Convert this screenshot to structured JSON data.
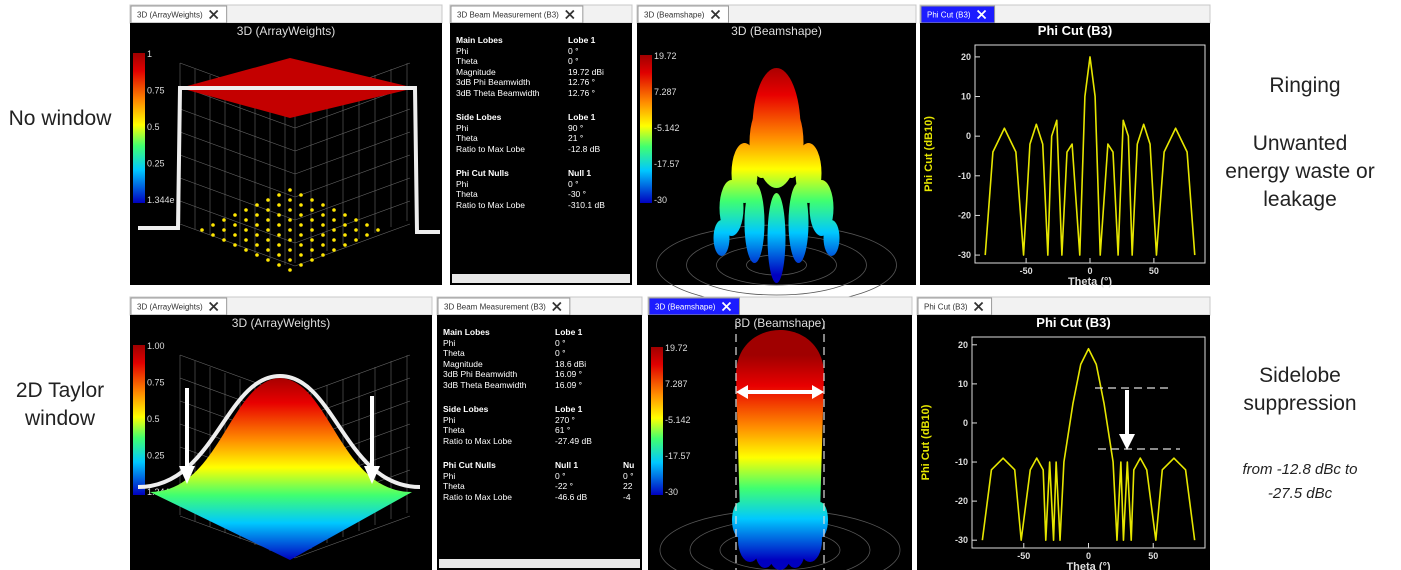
{
  "rows": [
    {
      "label": "No window",
      "notes": [
        "Ringing",
        "Unwanted energy waste or leakage"
      ],
      "weights": {
        "tab": "3D (ArrayWeights)",
        "title": "3D (ArrayWeights)",
        "colorbar": [
          "1",
          "0.75",
          "0.5",
          "0.25",
          "1.344e"
        ]
      },
      "measurement": {
        "tab": "3D Beam Measurement (B3)",
        "sections": [
          [
            [
              "Main Lobes",
              "Lobe 1"
            ],
            [
              "Phi",
              "0 °"
            ],
            [
              "Theta",
              "0 °"
            ],
            [
              "Magnitude",
              "19.72 dBi"
            ],
            [
              "3dB Phi Beamwidth",
              "12.76 °"
            ],
            [
              "3dB Theta Beamwidth",
              "12.76 °"
            ]
          ],
          [
            [
              "Side Lobes",
              "Lobe 1"
            ],
            [
              "Phi",
              "90 °"
            ],
            [
              "Theta",
              "21 °"
            ],
            [
              "Ratio to Max Lobe",
              "-12.8 dB"
            ]
          ],
          [
            [
              "Phi Cut Nulls",
              "Null 1"
            ],
            [
              "Phi",
              "0 °"
            ],
            [
              "Theta",
              "-30 °"
            ],
            [
              "Ratio to Max Lobe",
              "-310.1 dB"
            ]
          ]
        ]
      },
      "beamshape": {
        "tab": "3D (Beamshape)",
        "title": "3D (Beamshape)",
        "colorbar": [
          "19.72",
          "7.287",
          "-5.142",
          "-17.57",
          "-30"
        ]
      },
      "phi_cut": {
        "tab": "Phi Cut (B3)",
        "type": "line",
        "title": "Phi Cut (B3)",
        "ylabel": "Phi Cut (dB10)",
        "xlabel": "Theta (°)",
        "xlim": [
          -90,
          90
        ],
        "ylim": [
          -32,
          23
        ],
        "xticks": [
          -50,
          0,
          50
        ],
        "yticks": [
          20,
          10,
          0,
          -10,
          -20,
          -30
        ],
        "color": "#e6e600",
        "x": [
          -82,
          -76,
          -67,
          -58,
          -52,
          -47,
          -42,
          -37,
          -33,
          -30,
          -26,
          -22,
          -18,
          -14,
          -8,
          -4,
          0,
          4,
          8,
          14,
          18,
          22,
          26,
          30,
          33,
          37,
          42,
          47,
          52,
          58,
          67,
          76,
          82
        ],
        "values": [
          -30,
          -4,
          2,
          -4,
          -30,
          -2,
          3,
          -2,
          -30,
          0,
          4,
          -30,
          -4,
          -2,
          -30,
          10,
          20,
          10,
          -30,
          -2,
          -4,
          -30,
          4,
          0,
          -30,
          -2,
          3,
          -2,
          -30,
          -4,
          2,
          -4,
          -30
        ]
      }
    },
    {
      "label": "2D Taylor window",
      "notes": [
        "Sidelobe suppression",
        "from -12.8 dBc to -27.5 dBc"
      ],
      "weights": {
        "tab": "3D (ArrayWeights)",
        "title": "3D (ArrayWeights)",
        "colorbar": [
          "1.00",
          "0.75",
          "0.5",
          "0.25",
          "1.344e"
        ]
      },
      "measurement": {
        "tab": "3D Beam Measurement (B3)",
        "sections": [
          [
            [
              "Main Lobes",
              "Lobe 1"
            ],
            [
              "Phi",
              "0 °"
            ],
            [
              "Theta",
              "0 °"
            ],
            [
              "Magnitude",
              "18.6 dBi"
            ],
            [
              "3dB Phi Beamwidth",
              "16.09 °"
            ],
            [
              "3dB Theta Beamwidth",
              "16.09 °"
            ]
          ],
          [
            [
              "Side Lobes",
              "Lobe 1"
            ],
            [
              "Phi",
              "270 °"
            ],
            [
              "Theta",
              "61 °"
            ],
            [
              "Ratio to Max Lobe",
              "-27.49 dB"
            ]
          ],
          [
            [
              "Phi Cut Nulls",
              "Null 1",
              "Nu"
            ],
            [
              "Phi",
              "0 °",
              "0 °"
            ],
            [
              "Theta",
              "-22 °",
              "22"
            ],
            [
              "Ratio to Max Lobe",
              "-46.6 dB",
              "-4"
            ]
          ]
        ]
      },
      "beamshape": {
        "tab": "3D (Beamshape)",
        "title": "3D (Beamshape)",
        "colorbar": [
          "19.72",
          "7.287",
          "-5.142",
          "-17.57",
          "-30"
        ]
      },
      "phi_cut": {
        "tab": "Phi Cut (B3)",
        "type": "line",
        "title": "Phi Cut (B3)",
        "ylabel": "Phi Cut (dB10)",
        "xlabel": "Theta (°)",
        "xlim": [
          -90,
          90
        ],
        "ylim": [
          -32,
          22
        ],
        "xticks": [
          -50,
          0,
          50
        ],
        "yticks": [
          20,
          10,
          0,
          -10,
          -20,
          -30
        ],
        "color": "#e6e600",
        "x": [
          -82,
          -75,
          -66,
          -57,
          -52,
          -45,
          -40,
          -35,
          -33,
          -30,
          -27,
          -25,
          -22,
          -19,
          -12,
          -6,
          0,
          6,
          12,
          19,
          22,
          25,
          27,
          30,
          33,
          35,
          40,
          45,
          52,
          57,
          66,
          75,
          82
        ],
        "values": [
          -30,
          -12,
          -9,
          -12,
          -30,
          -12,
          -9,
          -12,
          -30,
          -10,
          -30,
          -10,
          -30,
          -10,
          5,
          15,
          19,
          15,
          5,
          -10,
          -30,
          -10,
          -30,
          -10,
          -30,
          -12,
          -9,
          -12,
          -30,
          -12,
          -9,
          -12,
          -30
        ]
      }
    }
  ]
}
